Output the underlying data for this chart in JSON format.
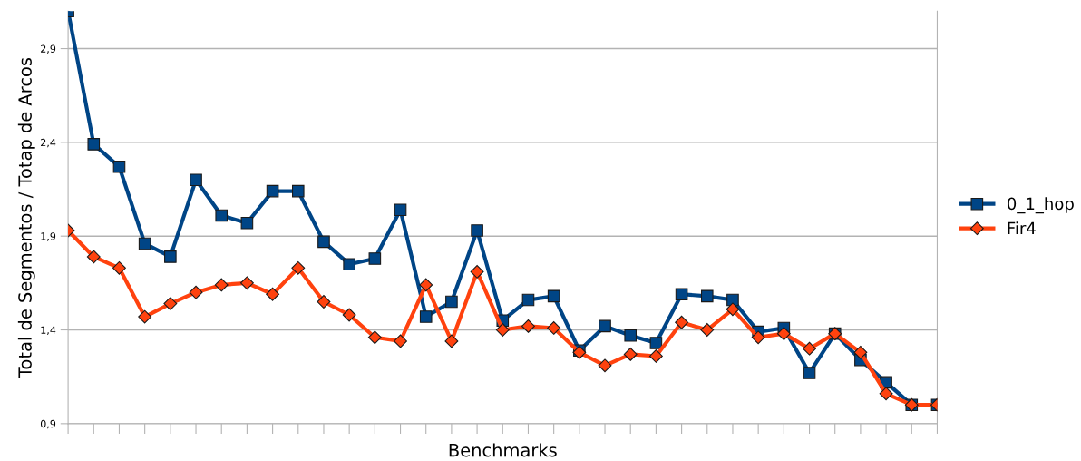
{
  "chart_data": {
    "type": "line",
    "xlabel": "Benchmarks",
    "ylabel": "Total de Segmentos / Totap de Arcos",
    "categories": [
      null,
      null,
      null,
      null,
      null,
      null,
      null,
      null,
      null,
      null,
      null,
      null,
      null,
      null,
      null,
      null,
      null,
      null,
      null,
      null,
      null,
      null,
      null,
      null,
      null,
      null,
      null,
      null,
      null,
      null,
      null,
      null,
      null,
      null,
      null
    ],
    "series": [
      {
        "name": "0_1_hop",
        "color": "#004586",
        "marker": "square",
        "values": [
          3.1,
          2.39,
          2.27,
          1.86,
          1.79,
          2.2,
          2.01,
          1.97,
          2.14,
          2.14,
          1.87,
          1.75,
          1.78,
          2.04,
          1.47,
          1.55,
          1.93,
          1.45,
          1.56,
          1.58,
          1.29,
          1.42,
          1.37,
          1.33,
          1.59,
          1.58,
          1.56,
          1.39,
          1.41,
          1.17,
          1.38,
          1.24,
          1.12,
          1.0,
          1.0
        ]
      },
      {
        "name": "Fir4",
        "color": "#ff420e",
        "marker": "diamond",
        "values": [
          1.93,
          1.79,
          1.73,
          1.47,
          1.54,
          1.6,
          1.64,
          1.65,
          1.59,
          1.73,
          1.55,
          1.48,
          1.36,
          1.34,
          1.64,
          1.34,
          1.71,
          1.4,
          1.42,
          1.41,
          1.28,
          1.21,
          1.27,
          1.26,
          1.44,
          1.4,
          1.51,
          1.36,
          1.38,
          1.3,
          1.38,
          1.28,
          1.06,
          1.0,
          1.0
        ]
      }
    ],
    "ylim": [
      0.9,
      3.1
    ],
    "yticks": [
      {
        "value": 0.9,
        "label": "0,9"
      },
      {
        "value": 1.4,
        "label": "1,4"
      },
      {
        "value": 1.9,
        "label": "1,9"
      },
      {
        "value": 2.4,
        "label": "2,4"
      },
      {
        "value": 2.9,
        "label": "2,9"
      }
    ],
    "grid": "y",
    "legend": "right",
    "line_style": "solid"
  }
}
